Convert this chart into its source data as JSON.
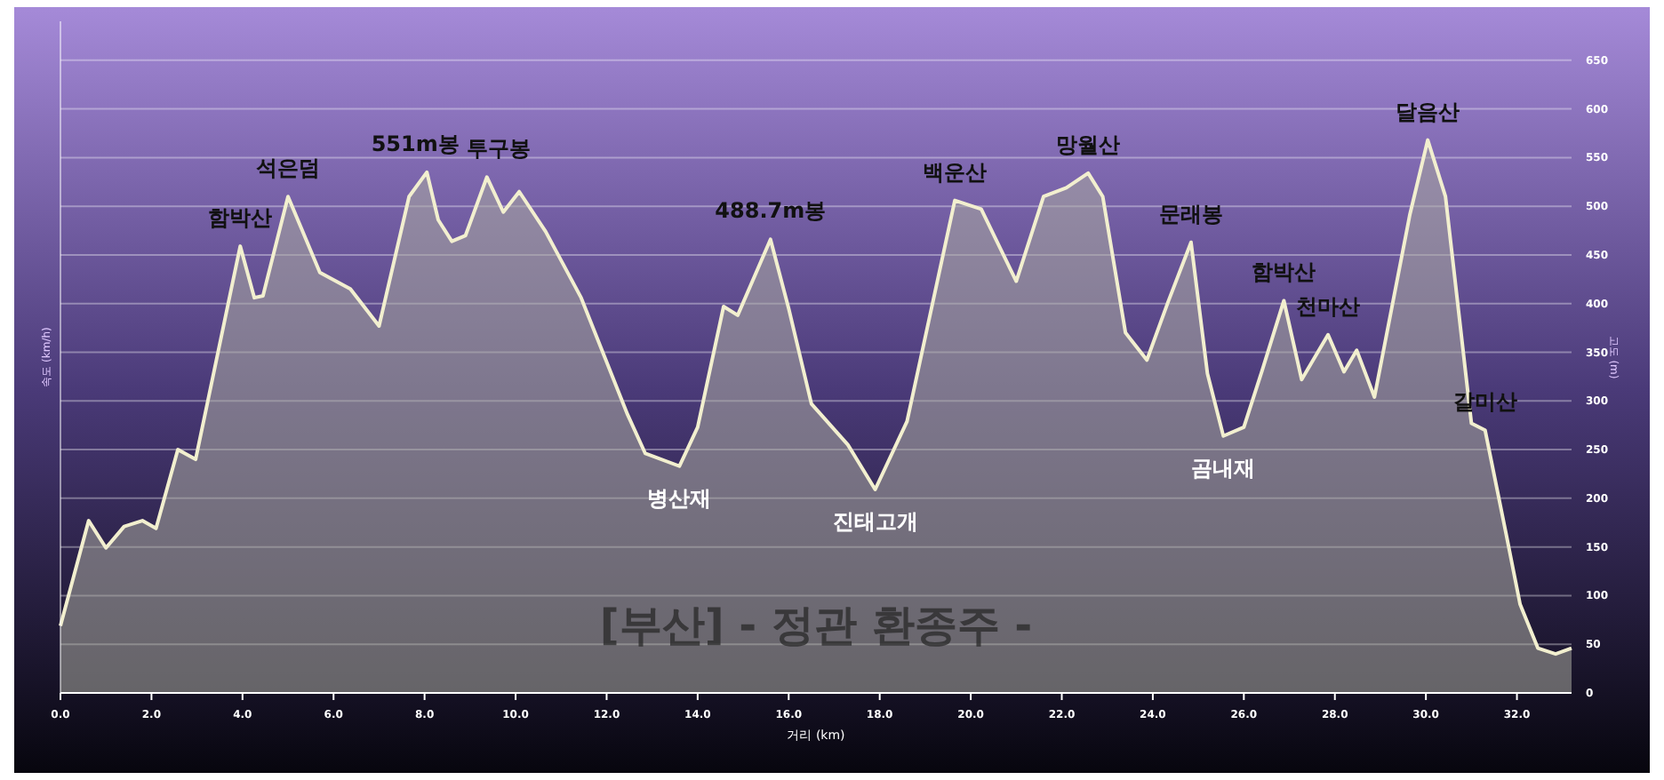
{
  "chart_data": {
    "type": "area",
    "title": "[부산] - 정관 환종주 -",
    "xlabel": "거리 (km)",
    "ylabel": "고도 (m)",
    "x": [
      0,
      0.62,
      1.0,
      1.4,
      1.8,
      2.1,
      2.58,
      2.97,
      3.95,
      4.26,
      4.45,
      5.0,
      5.7,
      6.37,
      7.0,
      7.66,
      8.05,
      8.3,
      8.6,
      8.9,
      9.37,
      9.73,
      10.08,
      10.66,
      11.44,
      11.95,
      12.46,
      12.85,
      13.6,
      14.0,
      14.57,
      14.88,
      15.6,
      16.0,
      16.5,
      17.3,
      17.9,
      18.6,
      19.65,
      20.23,
      21.0,
      21.6,
      22.1,
      22.58,
      22.9,
      23.4,
      23.87,
      24.33,
      24.84,
      25.2,
      25.55,
      26.0,
      26.4,
      26.88,
      27.27,
      27.85,
      28.2,
      28.48,
      28.87,
      29.65,
      30.04,
      30.43,
      31.0,
      31.3,
      31.76,
      32.07,
      32.46,
      32.85,
      33.2
    ],
    "series": [
      {
        "color": "#f2efcf",
        "values": [
          69,
          177,
          149,
          171,
          177,
          169,
          250,
          240,
          459,
          406,
          408,
          510,
          432,
          415,
          377,
          510,
          535,
          486,
          464,
          470,
          530,
          494,
          515,
          474,
          406,
          346,
          286,
          246,
          233,
          273,
          397,
          388,
          466,
          395,
          297,
          255,
          209,
          279,
          506,
          497,
          423,
          510,
          519,
          534,
          510,
          370,
          342,
          401,
          463,
          328,
          264,
          273,
          331,
          403,
          322,
          368,
          330,
          352,
          304,
          492,
          568,
          510,
          277,
          270,
          164,
          91,
          46,
          40,
          46
        ]
      }
    ],
    "xlim": [
      0,
      33.2
    ],
    "xticks": [
      {
        "value": 0,
        "label": "0.0"
      },
      {
        "value": 2,
        "label": "2.0"
      },
      {
        "value": 4,
        "label": "4.0"
      },
      {
        "value": 6,
        "label": "6.0"
      },
      {
        "value": 8,
        "label": "8.0"
      },
      {
        "value": 10,
        "label": "10.0"
      },
      {
        "value": 12,
        "label": "12.0"
      },
      {
        "value": 14,
        "label": "14.0"
      },
      {
        "value": 16,
        "label": "16.0"
      },
      {
        "value": 18,
        "label": "18.0"
      },
      {
        "value": 20,
        "label": "20.0"
      },
      {
        "value": 22,
        "label": "22.0"
      },
      {
        "value": 24,
        "label": "24.0"
      },
      {
        "value": 26,
        "label": "26.0"
      },
      {
        "value": 28,
        "label": "28.0"
      },
      {
        "value": 30,
        "label": "30.0"
      },
      {
        "value": 32,
        "label": "32.0"
      }
    ],
    "ylim": [
      0,
      690
    ],
    "yticks": [
      0,
      50,
      100,
      150,
      200,
      250,
      300,
      350,
      400,
      450,
      500,
      550,
      600,
      650
    ],
    "grid": "y",
    "marker": "none",
    "line_style": "solid",
    "annotations": [
      {
        "text": "함박산",
        "x": 3.95,
        "y": 459
      },
      {
        "text": "석은덤",
        "x": 5.0,
        "y": 510
      },
      {
        "text": "551m봉",
        "x": 8.05,
        "y": 535
      },
      {
        "text": "투구봉",
        "x": 9.37,
        "y": 530
      },
      {
        "text": "병산재",
        "x": 13.6,
        "y": 233
      },
      {
        "text": "488.7m봉",
        "x": 15.6,
        "y": 466
      },
      {
        "text": "진태고개",
        "x": 17.9,
        "y": 209
      },
      {
        "text": "백운산",
        "x": 19.65,
        "y": 506
      },
      {
        "text": "망월산",
        "x": 22.58,
        "y": 534
      },
      {
        "text": "문래봉",
        "x": 24.84,
        "y": 463
      },
      {
        "text": "곰내재",
        "x": 25.55,
        "y": 264
      },
      {
        "text": "함박산",
        "x": 26.88,
        "y": 403
      },
      {
        "text": "천마산",
        "x": 27.85,
        "y": 368
      },
      {
        "text": "달음산",
        "x": 30.04,
        "y": 568
      },
      {
        "text": "갈미산",
        "x": 31.3,
        "y": 270
      },
      "속도 (km/h)"
    ]
  }
}
